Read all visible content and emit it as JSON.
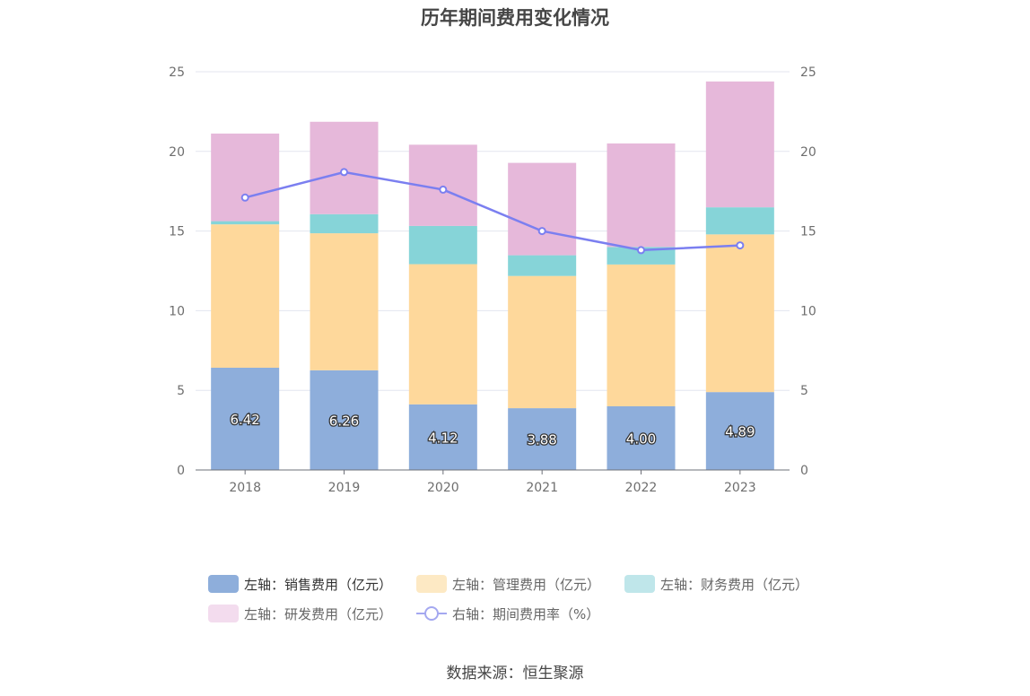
{
  "title": "历年期间费用变化情况",
  "source": "数据来源：恒生聚源",
  "legend": [
    {
      "label": "左轴：销售费用（亿元）",
      "color": "#8eaedb",
      "type": "bar",
      "active": true
    },
    {
      "label": "左轴：管理费用（亿元）",
      "color": "#fde9c4",
      "type": "bar",
      "active": false
    },
    {
      "label": "左轴：财务费用（亿元）",
      "color": "#bfe6ea",
      "type": "bar",
      "active": false
    },
    {
      "label": "左轴：研发费用（亿元）",
      "color": "#f3dcee",
      "type": "bar",
      "active": false
    },
    {
      "label": "右轴：期间费用率（%）",
      "color": "#a4a8f0",
      "type": "line",
      "active": false
    }
  ],
  "chart_data": {
    "type": "bar",
    "title": "历年期间费用变化情况",
    "categories": [
      "2018",
      "2019",
      "2020",
      "2021",
      "2022",
      "2023"
    ],
    "stacked": true,
    "left_axis": {
      "min": 0,
      "max": 25,
      "ticks": [
        "0",
        "5",
        "10",
        "15",
        "20",
        "25"
      ]
    },
    "right_axis": {
      "min": 0,
      "max": 25,
      "ticks": [
        "0",
        "5",
        "10",
        "15",
        "20",
        "25"
      ]
    },
    "grid": true,
    "series": [
      {
        "name": "左轴：销售费用（亿元）",
        "axis": "left",
        "type": "bar",
        "color": "#8eaedb",
        "values": [
          6.42,
          6.26,
          4.12,
          3.88,
          4.0,
          4.89
        ],
        "labels": [
          "6.42",
          "6.26",
          "4.12",
          "3.88",
          "4.00",
          "4.89"
        ]
      },
      {
        "name": "左轴：管理费用（亿元）",
        "axis": "left",
        "type": "bar",
        "color": "#fed89b",
        "values": [
          9.0,
          8.6,
          8.8,
          8.3,
          8.9,
          9.9
        ]
      },
      {
        "name": "左轴：财务费用（亿元）",
        "axis": "left",
        "type": "bar",
        "color": "#86d4d8",
        "values": [
          0.2,
          1.2,
          2.4,
          1.3,
          1.1,
          1.7
        ]
      },
      {
        "name": "左轴：研发费用（亿元）",
        "axis": "left",
        "type": "bar",
        "color": "#e6b8da",
        "values": [
          5.5,
          5.8,
          5.1,
          5.8,
          6.5,
          7.9
        ]
      },
      {
        "name": "右轴：期间费用率（%）",
        "axis": "right",
        "type": "line",
        "color": "#7b7ff0",
        "values": [
          17.1,
          18.7,
          17.6,
          15.0,
          13.8,
          14.1
        ]
      }
    ],
    "legend_position": "bottom"
  }
}
